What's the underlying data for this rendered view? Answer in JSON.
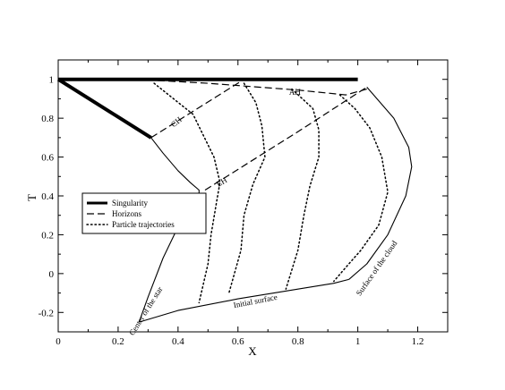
{
  "chart_data": {
    "type": "line",
    "title": "",
    "xlabel": "X",
    "ylabel": "T",
    "xlim": [
      0,
      1.3
    ],
    "ylim": [
      -0.3,
      1.1
    ],
    "xticks": [
      "0",
      "0.2",
      "0.4",
      "0.6",
      "0.8",
      "1",
      "1.2"
    ],
    "xtick_values": [
      0,
      0.2,
      0.4,
      0.6,
      0.8,
      1.0,
      1.2
    ],
    "yticks": [
      "-0.2",
      "0",
      "0.2",
      "0.4",
      "0.6",
      "0.8",
      "1"
    ],
    "ytick_values": [
      -0.2,
      0,
      0.2,
      0.4,
      0.6,
      0.8,
      1.0
    ],
    "grid": false,
    "legend_position": "middle-left",
    "legend": [
      {
        "label": "Singularity",
        "style": "thick"
      },
      {
        "label": "Horizons",
        "style": "dashed"
      },
      {
        "label": "Particle trajectories",
        "style": "dotted"
      }
    ],
    "annotations": [
      {
        "text": "AH",
        "x": 0.79,
        "y": 0.92,
        "angle": 0
      },
      {
        "text": "CH",
        "x": 0.4,
        "y": 0.77,
        "angle": -40
      },
      {
        "text": "EH",
        "x": 0.55,
        "y": 0.46,
        "angle": -30
      },
      {
        "text": "Center of the star",
        "x": 0.3,
        "y": -0.2,
        "angle": -58
      },
      {
        "text": "Initial surface",
        "x": 0.66,
        "y": -0.155,
        "angle": -11
      },
      {
        "text": "Surface of the cloud",
        "x": 1.07,
        "y": 0.02,
        "angle": -55
      }
    ],
    "series": [
      {
        "style": "thick",
        "x": [
          0,
          1.0
        ],
        "y": [
          1.0,
          1.0
        ]
      },
      {
        "style": "thick",
        "x": [
          0,
          0.31
        ],
        "y": [
          1.0,
          0.7
        ]
      },
      {
        "style": "dashed",
        "x": [
          0.31,
          0.62
        ],
        "y": [
          0.7,
          1.0
        ]
      },
      {
        "style": "dashed",
        "x": [
          0.26,
          0.5,
          0.8,
          0.96,
          1.03
        ],
        "y": [
          1.0,
          0.98,
          0.945,
          0.92,
          0.95
        ]
      },
      {
        "style": "dashed",
        "x": [
          0.49,
          0.8,
          1.03
        ],
        "y": [
          0.43,
          0.73,
          0.96
        ]
      },
      {
        "style": "solid",
        "x": [
          0.31,
          0.35,
          0.4,
          0.44,
          0.47,
          0.47,
          0.45,
          0.4,
          0.35,
          0.3,
          0.27
        ],
        "y": [
          0.7,
          0.62,
          0.53,
          0.47,
          0.43,
          0.37,
          0.33,
          0.24,
          0.08,
          -0.12,
          -0.25
        ]
      },
      {
        "style": "solid",
        "x": [
          0.27,
          0.4,
          0.6,
          0.8,
          0.92,
          0.97
        ],
        "y": [
          -0.25,
          -0.19,
          -0.13,
          -0.08,
          -0.05,
          -0.03
        ]
      },
      {
        "style": "solid",
        "x": [
          0.97,
          1.03,
          1.1,
          1.16,
          1.18,
          1.17,
          1.12,
          1.03
        ],
        "y": [
          -0.03,
          0.05,
          0.2,
          0.4,
          0.55,
          0.65,
          0.8,
          0.96
        ]
      },
      {
        "style": "dotted",
        "x": [
          0.32,
          0.45,
          0.52,
          0.54,
          0.53,
          0.51,
          0.5,
          0.47
        ],
        "y": [
          0.98,
          0.82,
          0.6,
          0.47,
          0.38,
          0.2,
          0.05,
          -0.15
        ]
      },
      {
        "style": "dotted",
        "x": [
          0.62,
          0.66,
          0.68,
          0.69,
          0.65,
          0.62,
          0.61,
          0.57
        ],
        "y": [
          0.98,
          0.88,
          0.76,
          0.6,
          0.46,
          0.3,
          0.12,
          -0.1
        ]
      },
      {
        "style": "dotted",
        "x": [
          0.78,
          0.85,
          0.87,
          0.87,
          0.84,
          0.82,
          0.8,
          0.76
        ],
        "y": [
          0.95,
          0.85,
          0.74,
          0.6,
          0.45,
          0.3,
          0.12,
          -0.08
        ]
      },
      {
        "style": "dotted",
        "x": [
          0.94,
          0.99,
          1.04,
          1.08,
          1.1,
          1.07,
          1.01,
          0.97,
          0.92
        ],
        "y": [
          0.92,
          0.85,
          0.75,
          0.6,
          0.42,
          0.25,
          0.12,
          0.05,
          -0.04
        ]
      }
    ]
  }
}
